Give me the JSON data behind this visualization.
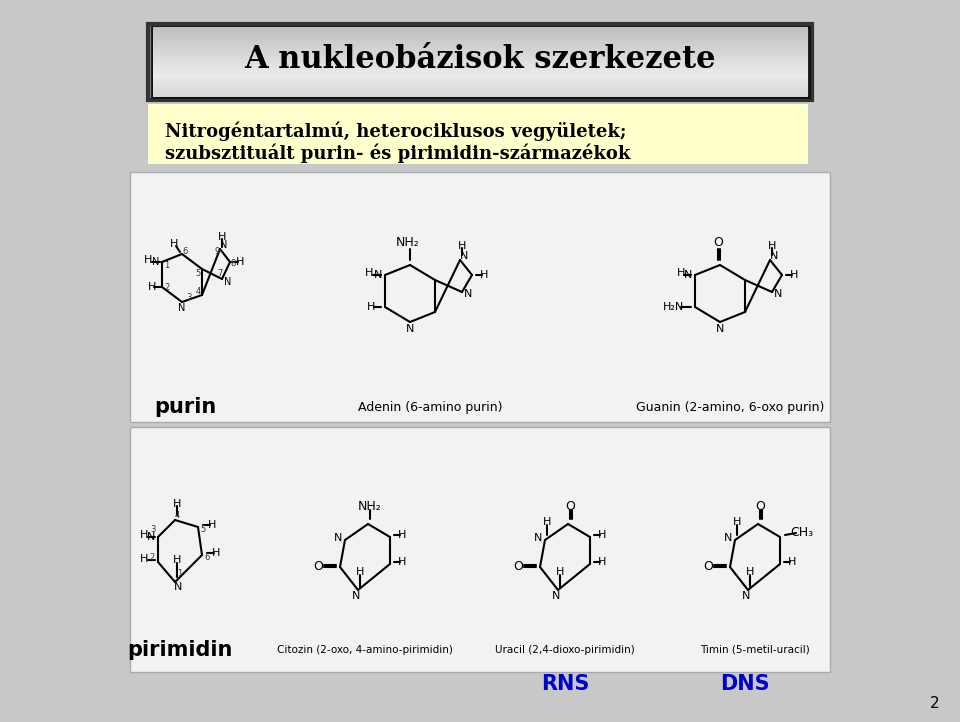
{
  "title": "A nukleobázisok szerkezete",
  "subtitle_line1": "Nitrogéntartalmú, heterociklusos vegyületek;",
  "subtitle_line2": "szubsztituált purin- és pirimidin-származékok",
  "bg_color": "#c8c8c8",
  "subtitle_bg": "#ffffcc",
  "label_purin": "purin",
  "label_pirimidin": "pirimidin",
  "label_adenin": "Adenin (6-amino purin)",
  "label_guanin": "Guanin (2-amino, 6-oxo purin)",
  "label_citozin": "Citozin (2-oxo, 4-amino-pirimidin)",
  "label_uracil": "Uracil (2,4-dioxo-pirimidin)",
  "label_timin": "Timin (5-metil-uracil)",
  "label_rns": "RNS",
  "label_dns": "DNS",
  "page_number": "2",
  "rns_color": "#0000cc",
  "dns_color": "#0000cc"
}
